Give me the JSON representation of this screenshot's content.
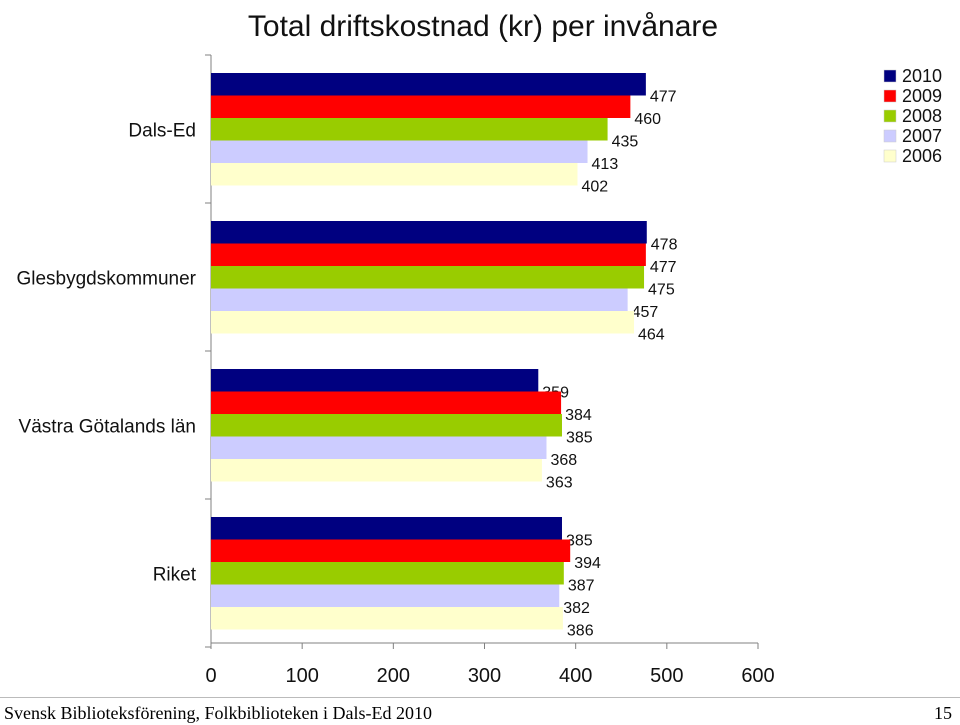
{
  "chart_data": {
    "type": "bar",
    "orientation": "horizontal",
    "title": "Total driftskostnad (kr) per invånare",
    "categories": [
      "Dals-Ed",
      "Glesbygdskommuner",
      "Västra Götalands län",
      "Riket"
    ],
    "series": [
      {
        "name": "2010",
        "color": "#000080",
        "values": [
          477,
          478,
          359,
          385
        ]
      },
      {
        "name": "2009",
        "color": "#FF0000",
        "values": [
          460,
          477,
          384,
          394
        ]
      },
      {
        "name": "2008",
        "color": "#99CC00",
        "values": [
          435,
          475,
          385,
          387
        ]
      },
      {
        "name": "2007",
        "color": "#CCCCFF",
        "values": [
          413,
          457,
          368,
          382
        ]
      },
      {
        "name": "2006",
        "color": "#FFFFCC",
        "values": [
          402,
          464,
          363,
          386
        ]
      }
    ],
    "xlim": [
      0,
      600
    ],
    "xticks": [
      "0",
      "100",
      "200",
      "300",
      "400",
      "500",
      "600"
    ],
    "xlabel": "",
    "ylabel": "",
    "grid": false,
    "legend_position": "top-right",
    "data_labels": true
  },
  "footer": {
    "source": "Svensk Biblioteksförening, Folkbiblioteken i Dals-Ed 2010",
    "page_number": "15"
  }
}
